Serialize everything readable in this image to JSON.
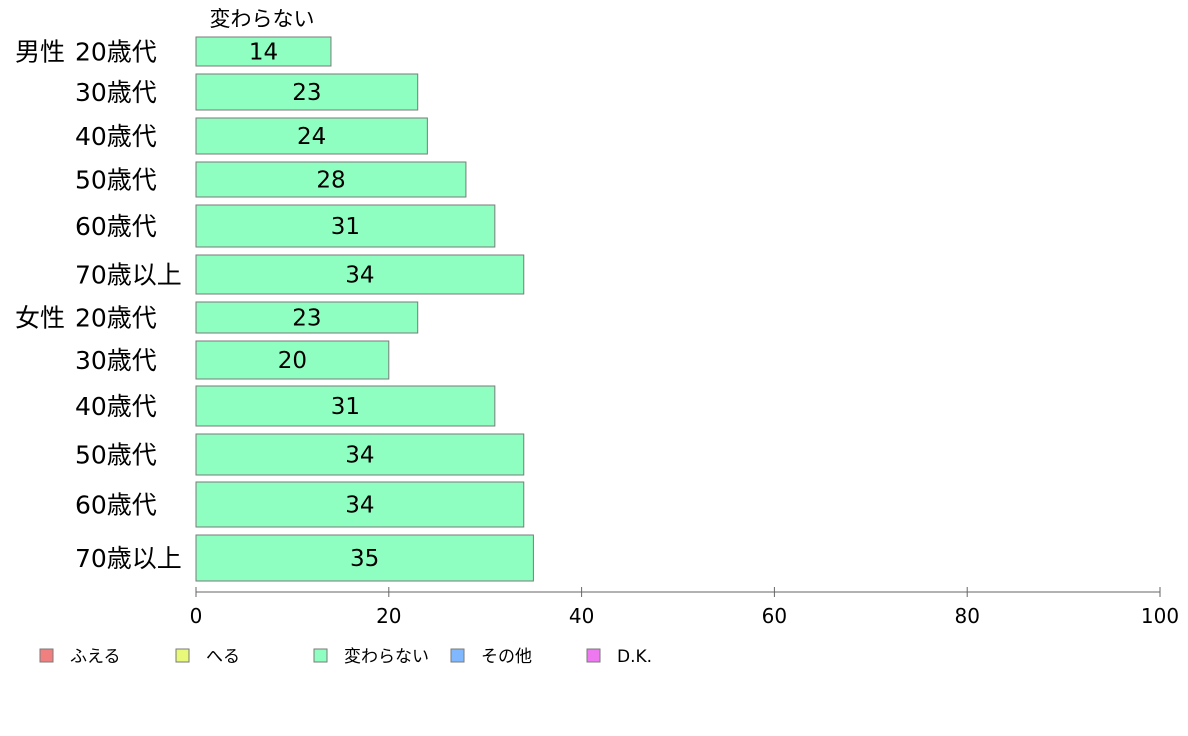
{
  "chart_data": {
    "type": "bar",
    "orientation": "horizontal",
    "stacked": true,
    "xlim": [
      0,
      100
    ],
    "x_ticks": [
      0,
      20,
      40,
      60,
      80,
      100
    ],
    "grid": false,
    "legend_position": "bottom-left",
    "series_header": "変わらない",
    "groups": [
      {
        "label": "男性",
        "start_index": 0
      },
      {
        "label": "女性",
        "start_index": 6
      }
    ],
    "categories": [
      "20歳代",
      "30歳代",
      "40歳代",
      "50歳代",
      "60歳代",
      "70歳以上",
      "20歳代",
      "30歳代",
      "40歳代",
      "50歳代",
      "60歳代",
      "70歳以上"
    ],
    "series": [
      {
        "name": "ふえる",
        "color": "#f08080",
        "values": [
          0,
          0,
          0,
          0,
          0,
          0,
          0,
          0,
          0,
          0,
          0,
          0
        ]
      },
      {
        "name": "へる",
        "color": "#e8f878",
        "values": [
          0,
          0,
          0,
          0,
          0,
          0,
          0,
          0,
          0,
          0,
          0,
          0
        ]
      },
      {
        "name": "変わらない",
        "color": "#8effc0",
        "values": [
          14,
          23,
          24,
          28,
          31,
          34,
          23,
          20,
          31,
          34,
          34,
          35
        ],
        "labels": [
          "14",
          "23",
          "24",
          "28",
          "31",
          "34",
          "23",
          "20",
          "31",
          "34",
          "34",
          "35"
        ]
      },
      {
        "name": "その他",
        "color": "#80b8ff",
        "values": [
          0,
          0,
          0,
          0,
          0,
          0,
          0,
          0,
          0,
          0,
          0,
          0
        ]
      },
      {
        "name": "D.K.",
        "color": "#ee78f0",
        "values": [
          0,
          0,
          0,
          0,
          0,
          0,
          0,
          0,
          0,
          0,
          0,
          0
        ]
      }
    ]
  }
}
